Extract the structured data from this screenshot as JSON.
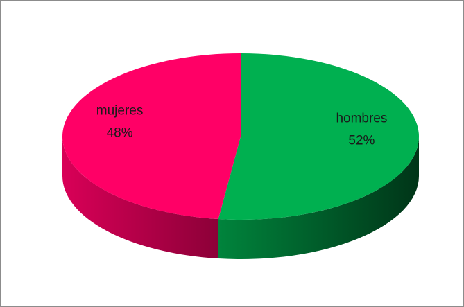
{
  "chart_data": {
    "type": "pie3d",
    "categories": [
      "hombres",
      "mujeres"
    ],
    "values": [
      52,
      48
    ],
    "value_labels": [
      "52%",
      "48%"
    ],
    "colors": [
      "#00b050",
      "#ff0066"
    ]
  }
}
